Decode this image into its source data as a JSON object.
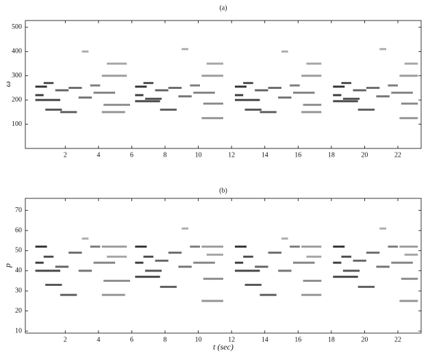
{
  "chart_data": [
    {
      "type": "segment",
      "title": "(a)",
      "ylabel": "ω",
      "color": "#2a2a2a",
      "xlim": [
        -0.4,
        23.4
      ],
      "ylim": [
        0,
        528
      ],
      "xticks": [
        2,
        4,
        6,
        8,
        10,
        12,
        14,
        16,
        18,
        20,
        22
      ],
      "yticks": [
        100,
        200,
        300,
        400,
        500
      ],
      "x_start": [
        0.2,
        0.2,
        0.2,
        0.7,
        0.8,
        1.7,
        1.4,
        2.2,
        2.8,
        3.5,
        3.7,
        4.3,
        4.2,
        4.2,
        4.5,
        3.0,
        6.2,
        6.2,
        6.2,
        6.7,
        6.8,
        7.7,
        7.4,
        8.2,
        8.8,
        9.5,
        9.7,
        10.3,
        10.2,
        10.2,
        10.5,
        9.0,
        12.2,
        12.2,
        12.2,
        12.7,
        12.8,
        13.7,
        13.4,
        14.2,
        14.8,
        15.5,
        15.7,
        16.3,
        16.2,
        16.2,
        16.5,
        15.0,
        18.1,
        18.1,
        18.1,
        18.6,
        18.7,
        19.6,
        19.3,
        20.1,
        20.7,
        21.4,
        21.6,
        22.2,
        22.1,
        22.1,
        22.4,
        20.9
      ],
      "x_end": [
        0.9,
        0.7,
        1.7,
        1.3,
        1.8,
        2.7,
        2.2,
        3.0,
        3.6,
        4.1,
        5.0,
        5.9,
        5.6,
        5.7,
        5.7,
        3.4,
        6.9,
        6.7,
        7.7,
        7.3,
        7.8,
        8.7,
        8.2,
        9.0,
        9.6,
        10.1,
        11.0,
        11.5,
        11.5,
        11.5,
        11.5,
        9.4,
        12.9,
        12.7,
        13.7,
        13.3,
        13.8,
        14.7,
        14.2,
        15.0,
        15.6,
        16.1,
        17.0,
        17.4,
        17.4,
        17.4,
        17.4,
        15.4,
        18.8,
        18.6,
        19.6,
        19.2,
        19.7,
        20.6,
        20.1,
        20.9,
        21.5,
        22.0,
        22.9,
        23.2,
        23.2,
        23.2,
        23.2,
        21.3
      ],
      "values": [
        255,
        220,
        200,
        270,
        160,
        150,
        240,
        250,
        210,
        260,
        230,
        180,
        150,
        300,
        350,
        400,
        255,
        220,
        195,
        270,
        205,
        160,
        240,
        250,
        215,
        260,
        230,
        185,
        125,
        300,
        350,
        410,
        255,
        220,
        200,
        270,
        160,
        150,
        240,
        250,
        210,
        260,
        230,
        180,
        150,
        300,
        350,
        400,
        255,
        220,
        195,
        270,
        205,
        160,
        240,
        250,
        215,
        260,
        230,
        185,
        125,
        300,
        350,
        410
      ]
    },
    {
      "type": "segment",
      "title": "(b)",
      "ylabel": "p",
      "xlabel": "t (sec)",
      "color": "#2a2a2a",
      "xlim": [
        -0.4,
        23.4
      ],
      "ylim": [
        9,
        76
      ],
      "xticks": [
        2,
        4,
        6,
        8,
        10,
        12,
        14,
        16,
        18,
        20,
        22
      ],
      "yticks": [
        10,
        20,
        30,
        40,
        50,
        60,
        70
      ],
      "x_start": [
        0.2,
        0.2,
        0.2,
        0.7,
        0.8,
        1.7,
        1.4,
        2.2,
        2.8,
        3.5,
        3.7,
        4.3,
        4.2,
        4.2,
        4.5,
        3.0,
        6.2,
        6.2,
        6.2,
        6.7,
        6.8,
        7.7,
        7.4,
        8.2,
        8.8,
        9.5,
        9.7,
        10.3,
        10.2,
        10.2,
        10.5,
        9.0,
        12.2,
        12.2,
        12.2,
        12.7,
        12.8,
        13.7,
        13.4,
        14.2,
        14.8,
        15.5,
        15.7,
        16.3,
        16.2,
        16.2,
        16.5,
        15.0,
        18.1,
        18.1,
        18.1,
        18.6,
        18.7,
        19.6,
        19.3,
        20.1,
        20.7,
        21.4,
        21.6,
        22.2,
        22.1,
        22.1,
        22.4,
        20.9
      ],
      "x_end": [
        0.9,
        0.7,
        1.7,
        1.3,
        1.8,
        2.7,
        2.2,
        3.0,
        3.6,
        4.1,
        5.0,
        5.9,
        5.6,
        5.7,
        5.7,
        3.4,
        6.9,
        6.7,
        7.7,
        7.3,
        7.8,
        8.7,
        8.2,
        9.0,
        9.6,
        10.1,
        11.0,
        11.5,
        11.5,
        11.5,
        11.5,
        9.4,
        12.9,
        12.7,
        13.7,
        13.3,
        13.8,
        14.7,
        14.2,
        15.0,
        15.6,
        16.1,
        17.0,
        17.4,
        17.4,
        17.4,
        17.4,
        15.4,
        18.8,
        18.6,
        19.6,
        19.2,
        19.7,
        20.6,
        20.1,
        20.9,
        21.5,
        22.0,
        22.9,
        23.2,
        23.2,
        23.2,
        23.2,
        21.3
      ],
      "values": [
        52,
        44,
        40,
        47,
        33,
        28,
        42,
        49,
        40,
        52,
        44,
        35,
        28,
        52,
        47,
        56,
        52,
        44,
        37,
        47,
        40,
        32,
        45,
        49,
        42,
        52,
        44,
        36,
        25,
        52,
        48,
        61,
        52,
        44,
        40,
        47,
        33,
        28,
        42,
        49,
        40,
        52,
        44,
        35,
        28,
        52,
        47,
        56,
        52,
        44,
        37,
        47,
        40,
        32,
        45,
        49,
        42,
        52,
        44,
        36,
        25,
        52,
        48,
        61
      ]
    }
  ]
}
